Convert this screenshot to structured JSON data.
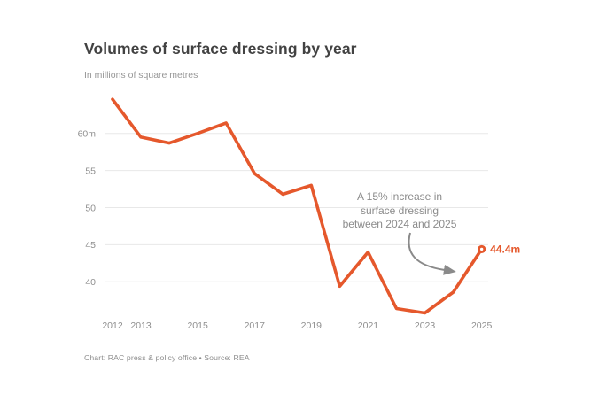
{
  "header": {
    "title": "Volumes of surface dressing by year",
    "subtitle": "In millions of square metres"
  },
  "annotation": {
    "lines": [
      "A 15% increase in",
      "surface dressing",
      "between 2024 and 2025"
    ],
    "full_text": "A 15% increase in surface dressing between 2024 and 2025"
  },
  "footer": {
    "text": "Chart: RAC press & policy office • Source: REA"
  },
  "colors": {
    "line": "#e5582c",
    "end_label": "#e5582c",
    "title": "#424242",
    "tick_label": "#8f8f8f",
    "grid": "#e8e8e8",
    "arrow": "#8a8a8a"
  },
  "chart_data": {
    "type": "line",
    "title": "Volumes of surface dressing by year",
    "units": "millions of square metres",
    "x": [
      2012,
      2013,
      2014,
      2015,
      2016,
      2017,
      2018,
      2019,
      2020,
      2021,
      2022,
      2023,
      2024,
      2025
    ],
    "series_name": "Surface dressing volume",
    "values": [
      64.6,
      59.5,
      58.7,
      60.0,
      61.4,
      54.6,
      51.8,
      53.0,
      39.4,
      44.0,
      36.4,
      35.8,
      38.6,
      44.4
    ],
    "x_tick_labels": [
      "2012",
      "2013",
      "2015",
      "2017",
      "2019",
      "2021",
      "2023",
      "2025"
    ],
    "y_ticks": [
      {
        "value": 60,
        "label": "60m"
      },
      {
        "value": 55,
        "label": "55"
      },
      {
        "value": 50,
        "label": "50"
      },
      {
        "value": 45,
        "label": "45"
      },
      {
        "value": 40,
        "label": "40"
      }
    ],
    "ylim": [
      33.5,
      66
    ],
    "grid": "horizontal",
    "legend": "none",
    "end_point": {
      "year": 2025,
      "value": 44.4,
      "label": "44.4m"
    },
    "annotation_text": "A 15% increase in surface dressing between 2024 and 2025"
  }
}
